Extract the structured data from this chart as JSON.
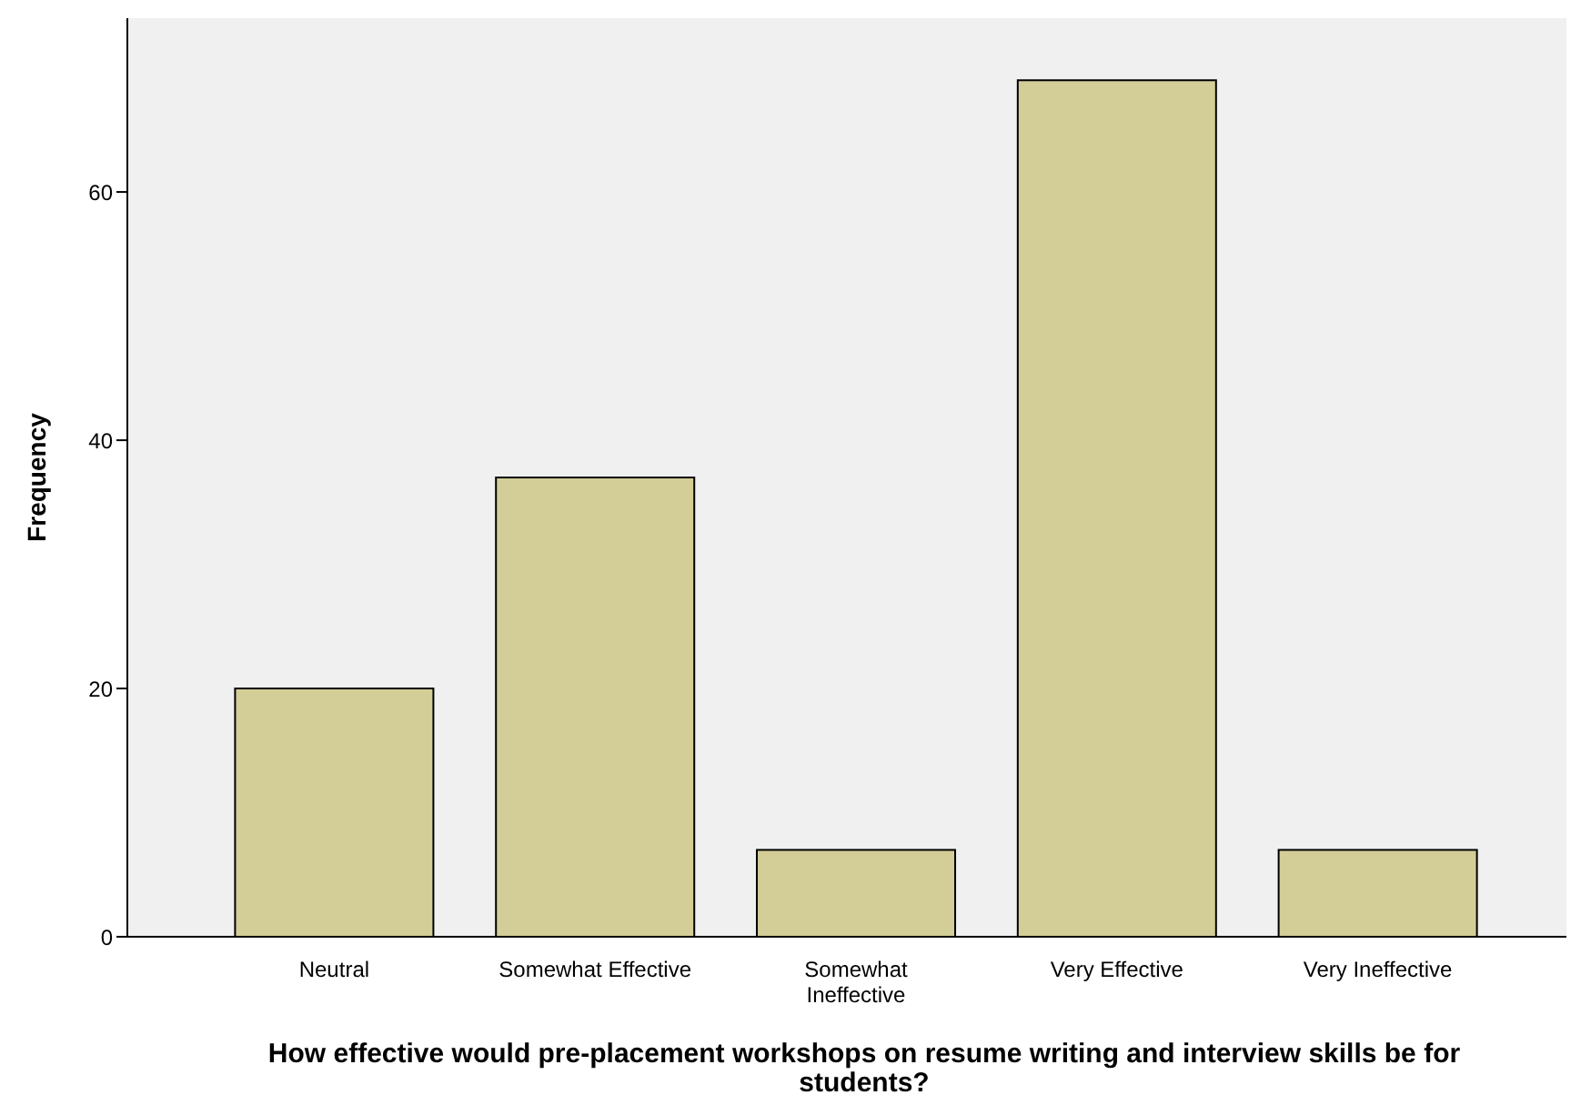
{
  "chart_data": {
    "type": "bar",
    "xlabel": "How effective would pre-placement workshops on resume writing and interview skills be for students?",
    "ylabel": "Frequency",
    "categories": [
      "Neutral",
      "Somewhat Effective",
      "Somewhat Ineffective",
      "Very Effective",
      "Very Ineffective"
    ],
    "values": [
      20,
      37,
      7,
      69,
      7
    ],
    "color": "#d3ce97",
    "ylim": [
      0,
      74
    ],
    "yticks": [
      0,
      20,
      40,
      60
    ],
    "grid": false
  }
}
